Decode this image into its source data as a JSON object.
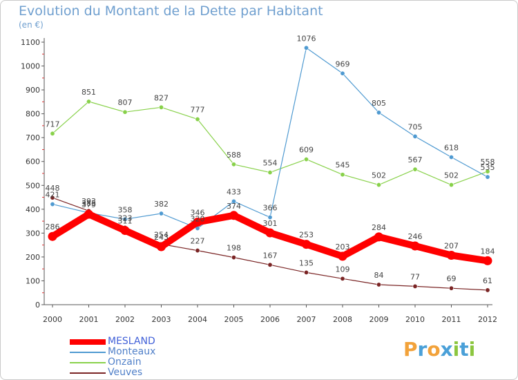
{
  "chart_data": {
    "type": "line",
    "title": "Evolution du Montant de la Dette par Habitant",
    "subtitle": "(en €)",
    "x": [
      "2000",
      "2001",
      "2002",
      "2003",
      "2004",
      "2005",
      "2006",
      "2007",
      "2008",
      "2009",
      "2010",
      "2011",
      "2012"
    ],
    "ylim": [
      0,
      1100
    ],
    "yticks": [
      0,
      100,
      200,
      300,
      400,
      500,
      600,
      700,
      800,
      900,
      1000,
      1100
    ],
    "grid": false,
    "legend_position": "bottom-left",
    "series": [
      {
        "name": "MESLAND",
        "color": "#ff0000",
        "values": [
          286,
          379,
          311,
          243,
          346,
          374,
          301,
          253,
          203,
          284,
          246,
          207,
          184
        ]
      },
      {
        "name": "Monteaux",
        "color": "#4f9ad1",
        "values": [
          421,
          385,
          358,
          382,
          320,
          433,
          366,
          1076,
          969,
          805,
          705,
          618,
          535
        ]
      },
      {
        "name": "Onzain",
        "color": "#88d14a",
        "values": [
          717,
          851,
          807,
          827,
          777,
          588,
          554,
          609,
          545,
          502,
          567,
          502,
          558
        ]
      },
      {
        "name": "Veuves",
        "color": "#7a2424",
        "values": [
          448,
          393,
          323,
          254,
          227,
          198,
          167,
          135,
          109,
          84,
          77,
          69,
          61
        ]
      }
    ],
    "data_labels": {
      "MESLAND": [
        "286",
        "379",
        "311",
        "243",
        "346",
        "374",
        "301",
        "253",
        "203",
        "284",
        "246",
        "207",
        "184"
      ],
      "Monteaux": [
        "421",
        "385",
        "358",
        "382",
        "320",
        "433",
        "366",
        "1076",
        "969",
        "805",
        "705",
        "618",
        "535"
      ],
      "Onzain": [
        "717",
        "851",
        "807",
        "827",
        "777",
        "588",
        "554",
        "609",
        "545",
        "502",
        "567",
        "502",
        "558"
      ],
      "Veuves": [
        "448",
        "393",
        "323",
        "254",
        "227",
        "198",
        "167",
        "135",
        "109",
        "84",
        "77",
        "69",
        "61"
      ]
    }
  },
  "logo": {
    "text": "Proxiti",
    "letters": [
      "P",
      "r",
      "o",
      "x",
      "i",
      "t",
      "i"
    ],
    "colors": [
      "#f2a23a",
      "#4aa0d8",
      "#f2a23a",
      "#4aa0d8",
      "#8cc63f",
      "#4aa0d8",
      "#8cc63f"
    ]
  }
}
